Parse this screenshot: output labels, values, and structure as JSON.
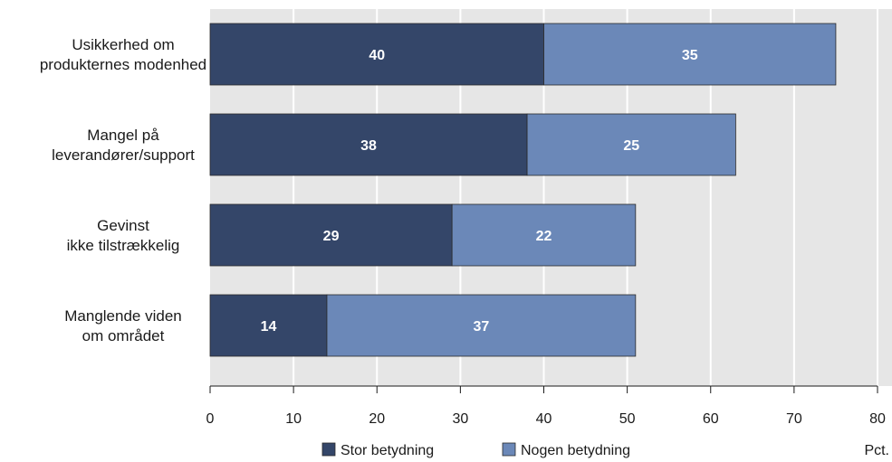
{
  "chart_data": {
    "type": "bar",
    "orientation": "horizontal",
    "stacked": true,
    "categories": [
      [
        "Usikkerhed om",
        "produkternes modenhed"
      ],
      [
        "Mangel på",
        "leverandører/support"
      ],
      [
        "Gevinst",
        "ikke tilstrækkelig"
      ],
      [
        "Manglende viden",
        "om området"
      ]
    ],
    "series": [
      {
        "name": "Stor betydning",
        "values": [
          40,
          38,
          29,
          14
        ],
        "color": "#344669"
      },
      {
        "name": "Nogen betydning",
        "values": [
          35,
          25,
          22,
          37
        ],
        "color": "#6b88b8"
      }
    ],
    "data_labels": [
      [
        40,
        38,
        29,
        14
      ],
      [
        35,
        25,
        22,
        37
      ]
    ],
    "xlim": [
      0,
      80
    ],
    "xticks": [
      0,
      10,
      20,
      30,
      40,
      50,
      60,
      70,
      80
    ],
    "unit": "Pct.",
    "grid": true,
    "legend_position": "bottom-center",
    "colors": {
      "page_background": "#ffffff",
      "plot_background": "#e6e6e6",
      "gridline": "#ffffff",
      "axis": "#1a1a1a"
    }
  }
}
